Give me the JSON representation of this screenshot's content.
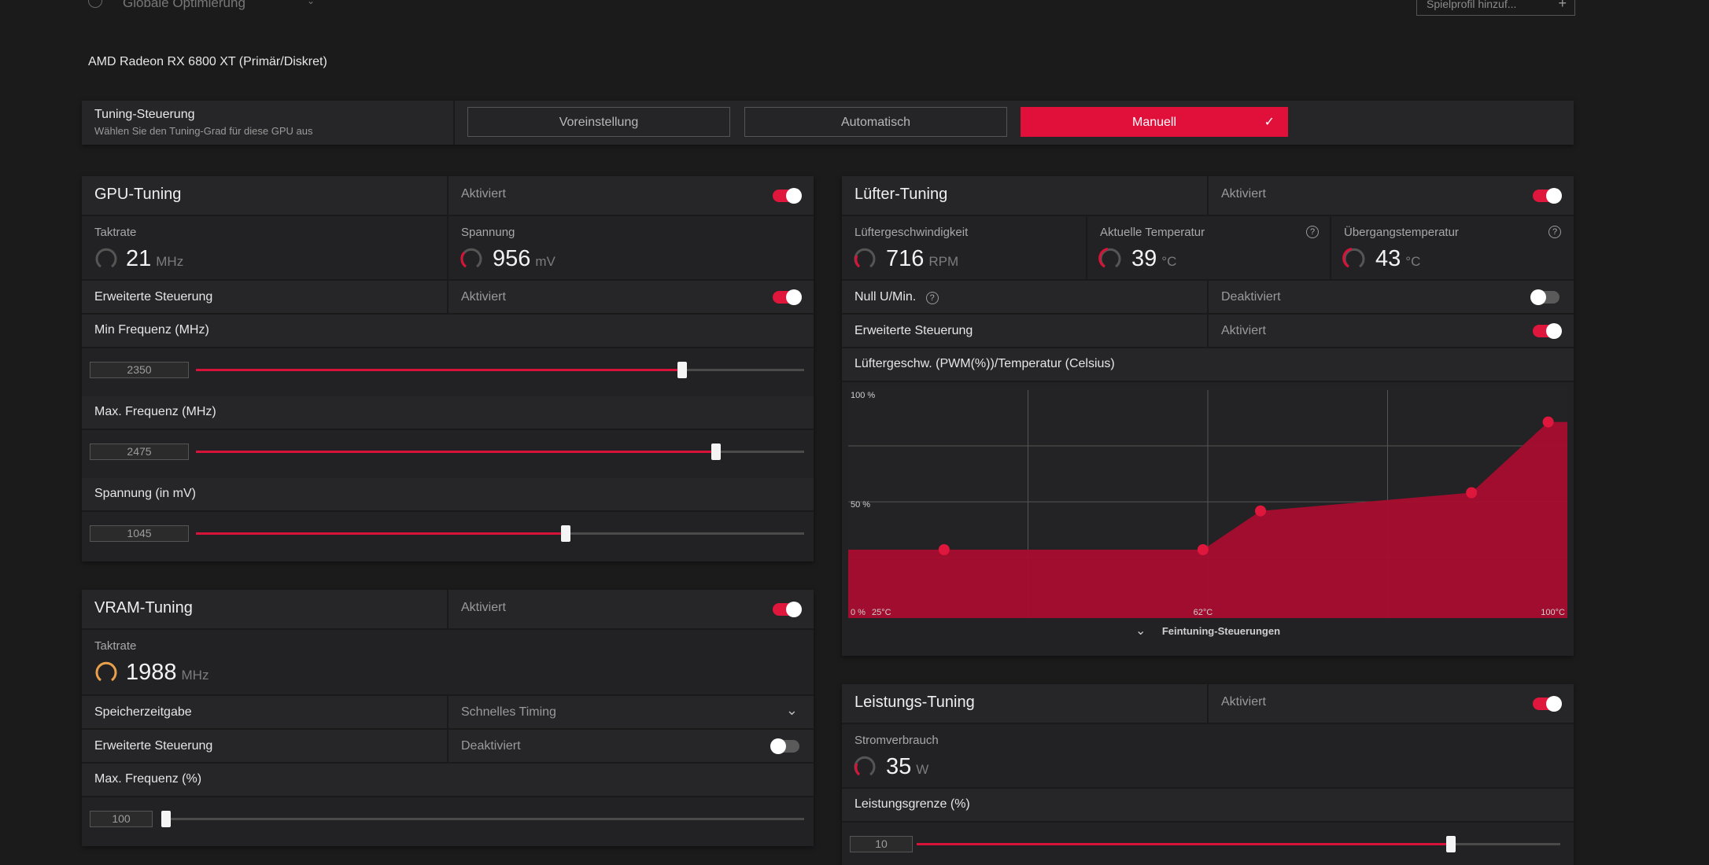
{
  "top_bar": {
    "profile_label": "Globale Optimierung",
    "game_profile_button": "Spielprofil hinzuf..."
  },
  "device_name": "AMD Radeon RX 6800 XT (Primär/Diskret)",
  "tuning_control": {
    "title": "Tuning-Steuerung",
    "subtitle": "Wählen Sie den Tuning-Grad für diese GPU aus",
    "options": [
      "Voreinstellung",
      "Automatisch",
      "Manuell"
    ],
    "selected": "Manuell"
  },
  "gpu_tuning": {
    "title": "GPU-Tuning",
    "status": "Aktiviert",
    "enabled": true,
    "clock": {
      "label": "Taktrate",
      "value": "21",
      "unit": "MHz"
    },
    "voltage": {
      "label": "Spannung",
      "value": "956",
      "unit": "mV"
    },
    "advanced": {
      "label": "Erweiterte Steuerung",
      "status": "Aktiviert",
      "enabled": true
    },
    "sliders": [
      {
        "label": "Min Frequenz (MHz)",
        "value": "2350",
        "fraction": 0.8
      },
      {
        "label": "Max. Frequenz (MHz)",
        "value": "2475",
        "fraction": 0.855
      },
      {
        "label": "Spannung (in mV)",
        "value": "1045",
        "fraction": 0.608
      }
    ]
  },
  "vram_tuning": {
    "title": "VRAM-Tuning",
    "status": "Aktiviert",
    "enabled": true,
    "clock": {
      "label": "Taktrate",
      "value": "1988",
      "unit": "MHz"
    },
    "memory_timing": {
      "label": "Speicherzeitgabe",
      "value": "Schnelles Timing"
    },
    "advanced": {
      "label": "Erweiterte Steuerung",
      "status": "Deaktiviert",
      "enabled": false
    },
    "max_freq": {
      "label": "Max. Frequenz (%)",
      "value": "100",
      "fraction": 0.0
    }
  },
  "fan_tuning": {
    "title": "Lüfter-Tuning",
    "status": "Aktiviert",
    "enabled": true,
    "fan_speed": {
      "label": "Lüftergeschwindigkeit",
      "value": "716",
      "unit": "RPM"
    },
    "current_temp": {
      "label": "Aktuelle Temperatur",
      "value": "39",
      "unit": "°C"
    },
    "junction_temp": {
      "label": "Übergangstemperatur",
      "value": "43",
      "unit": "°C"
    },
    "zero_rpm": {
      "label": "Null U/Min.",
      "status": "Deaktiviert",
      "enabled": false
    },
    "advanced": {
      "label": "Erweiterte Steuerung",
      "status": "Aktiviert",
      "enabled": true
    },
    "curve_title": "Lüftergeschw. (PWM(%))/Temperatur (Celsius)",
    "fine_tuning_label": "Feintuning-Steuerungen"
  },
  "power_tuning": {
    "title": "Leistungs-Tuning",
    "status": "Aktiviert",
    "enabled": true,
    "power": {
      "label": "Stromverbrauch",
      "value": "35",
      "unit": "W"
    },
    "power_limit": {
      "label": "Leistungsgrenze (%)",
      "value": "10",
      "fraction": 0.83
    }
  },
  "colors": {
    "accent": "#e0103b",
    "panel": "#222224",
    "background": "#1b1b1b",
    "vram_gauge": "#e8a04a"
  },
  "chart_data": {
    "type": "area",
    "title": "Lüftergeschw. (PWM(%))/Temperatur (Celsius)",
    "xlim": [
      25,
      100
    ],
    "ylim": [
      0,
      100
    ],
    "x_tick_labels": [
      "25°C",
      "62°C",
      "100°C"
    ],
    "y_tick_labels": [
      "0 %",
      "50 %",
      "100 %"
    ],
    "series": [
      {
        "x": [
          35,
          62,
          68,
          90,
          98
        ],
        "y": [
          30,
          30,
          47,
          55,
          86
        ]
      }
    ],
    "grid": true
  }
}
